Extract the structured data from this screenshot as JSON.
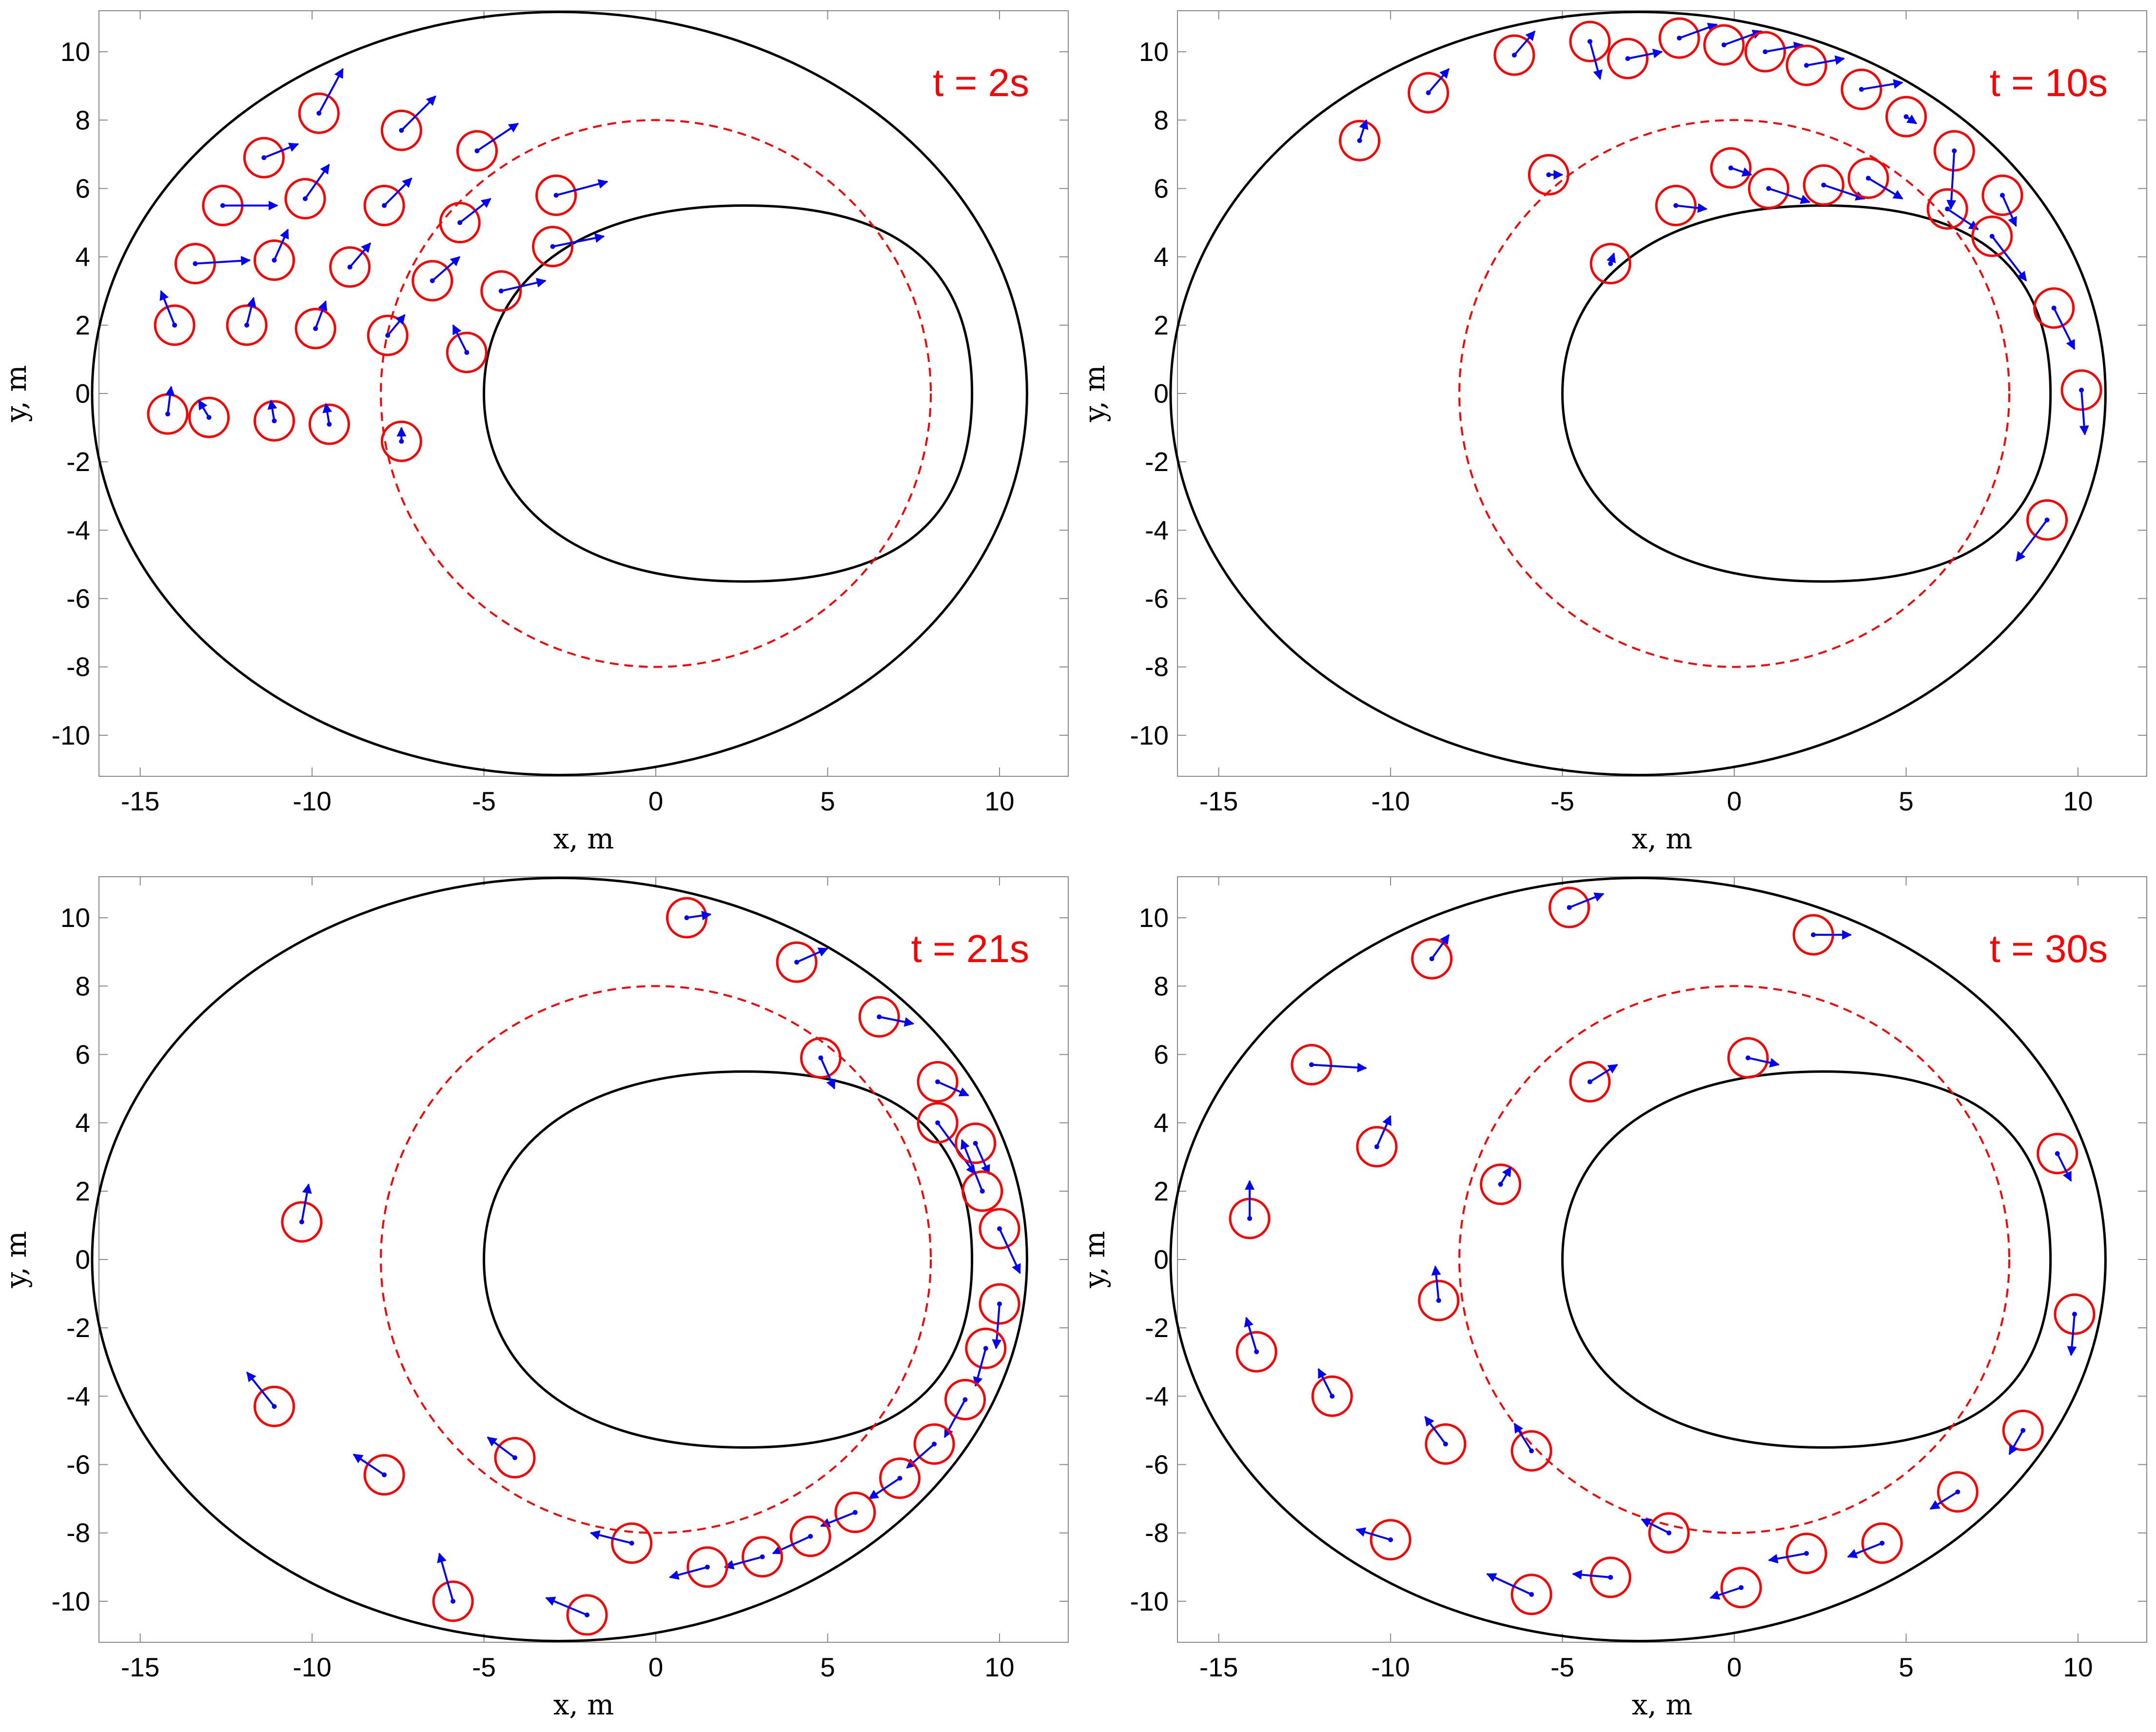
{
  "colors": {
    "agent": "#ff0000",
    "velocity": "#0000ff",
    "boundary": "#000000",
    "reference_path": "#ff0000",
    "frame": "#888888"
  },
  "chart_data": [
    {
      "type": "scatter",
      "title": "t = 2s",
      "xlabel": "x, m",
      "ylabel": "y, m",
      "xlim": [
        -16.2,
        12
      ],
      "ylim": [
        -11.2,
        11.2
      ],
      "xticks": [
        -15,
        -10,
        -5,
        0,
        5,
        10
      ],
      "yticks": [
        -10,
        -8,
        -6,
        -4,
        -2,
        0,
        2,
        4,
        6,
        8,
        10
      ],
      "grid": false,
      "boundaries": {
        "outer": {
          "center": [
            -2.8,
            0
          ],
          "rx": 13.6,
          "ry": 11.1
        },
        "inner": {
          "left": -5,
          "right": 9.2,
          "top": 5.5,
          "bottom": -5.5,
          "peak_x": 2.6
        },
        "reference_circle": {
          "center": [
            0,
            0
          ],
          "radius": 8
        }
      },
      "agents": [
        {
          "x": -9.8,
          "y": 8.2,
          "vx": 0.7,
          "vy": 1.3
        },
        {
          "x": -7.4,
          "y": 7.7,
          "vx": 1.0,
          "vy": 1.0
        },
        {
          "x": -5.2,
          "y": 7.1,
          "vx": 1.2,
          "vy": 0.8
        },
        {
          "x": -11.4,
          "y": 6.9,
          "vx": 1.0,
          "vy": 0.4
        },
        {
          "x": -12.6,
          "y": 5.5,
          "vx": 1.6,
          "vy": 0.0
        },
        {
          "x": -10.2,
          "y": 5.7,
          "vx": 0.7,
          "vy": 1.0
        },
        {
          "x": -7.9,
          "y": 5.5,
          "vx": 0.8,
          "vy": 0.8
        },
        {
          "x": -2.9,
          "y": 5.8,
          "vx": 1.5,
          "vy": 0.4
        },
        {
          "x": -5.7,
          "y": 5.0,
          "vx": 0.9,
          "vy": 0.7
        },
        {
          "x": -13.4,
          "y": 3.8,
          "vx": 1.6,
          "vy": 0.1
        },
        {
          "x": -11.1,
          "y": 3.9,
          "vx": 0.4,
          "vy": 0.9
        },
        {
          "x": -8.9,
          "y": 3.7,
          "vx": 0.6,
          "vy": 0.7
        },
        {
          "x": -6.5,
          "y": 3.3,
          "vx": 0.8,
          "vy": 0.7
        },
        {
          "x": -3.0,
          "y": 4.3,
          "vx": 1.5,
          "vy": 0.3
        },
        {
          "x": -4.5,
          "y": 3.0,
          "vx": 1.3,
          "vy": 0.3
        },
        {
          "x": -14.0,
          "y": 2.0,
          "vx": -0.4,
          "vy": 1.0
        },
        {
          "x": -11.9,
          "y": 2.0,
          "vx": 0.2,
          "vy": 0.8
        },
        {
          "x": -9.9,
          "y": 1.9,
          "vx": 0.3,
          "vy": 0.8
        },
        {
          "x": -7.8,
          "y": 1.7,
          "vx": 0.5,
          "vy": 0.6
        },
        {
          "x": -5.5,
          "y": 1.2,
          "vx": -0.4,
          "vy": 0.8
        },
        {
          "x": -14.2,
          "y": -0.6,
          "vx": 0.1,
          "vy": 0.8
        },
        {
          "x": -13.0,
          "y": -0.7,
          "vx": -0.3,
          "vy": 0.5
        },
        {
          "x": -11.1,
          "y": -0.8,
          "vx": -0.1,
          "vy": 0.6
        },
        {
          "x": -9.5,
          "y": -0.9,
          "vx": -0.1,
          "vy": 0.6
        },
        {
          "x": -7.4,
          "y": -1.4,
          "vx": 0.0,
          "vy": 0.4
        }
      ]
    },
    {
      "type": "scatter",
      "title": "t = 10s",
      "xlabel": "x, m",
      "ylabel": "y, m",
      "xlim": [
        -16.2,
        12
      ],
      "ylim": [
        -11.2,
        11.2
      ],
      "xticks": [
        -15,
        -10,
        -5,
        0,
        5,
        10
      ],
      "yticks": [
        -10,
        -8,
        -6,
        -4,
        -2,
        0,
        2,
        4,
        6,
        8,
        10
      ],
      "grid": false,
      "boundaries": {
        "outer": {
          "center": [
            -2.8,
            0
          ],
          "rx": 13.6,
          "ry": 11.1
        },
        "inner": {
          "left": -5,
          "right": 9.2,
          "top": 5.5,
          "bottom": -5.5,
          "peak_x": 2.6
        },
        "reference_circle": {
          "center": [
            0,
            0
          ],
          "radius": 8
        }
      },
      "agents": [
        {
          "x": -10.9,
          "y": 7.4,
          "vx": 0.2,
          "vy": 0.6
        },
        {
          "x": -8.9,
          "y": 8.8,
          "vx": 0.6,
          "vy": 0.7
        },
        {
          "x": -6.4,
          "y": 9.9,
          "vx": 0.6,
          "vy": 0.7
        },
        {
          "x": -4.2,
          "y": 10.3,
          "vx": 0.3,
          "vy": -1.1
        },
        {
          "x": -3.1,
          "y": 9.8,
          "vx": 1.0,
          "vy": 0.2
        },
        {
          "x": -1.6,
          "y": 10.4,
          "vx": 1.1,
          "vy": 0.4
        },
        {
          "x": -0.3,
          "y": 10.2,
          "vx": 1.1,
          "vy": 0.4
        },
        {
          "x": 0.9,
          "y": 10.0,
          "vx": 1.1,
          "vy": 0.2
        },
        {
          "x": 2.1,
          "y": 9.6,
          "vx": 1.1,
          "vy": 0.2
        },
        {
          "x": 3.7,
          "y": 8.9,
          "vx": 1.2,
          "vy": 0.2
        },
        {
          "x": 5.0,
          "y": 8.1,
          "vx": 0.3,
          "vy": -0.2
        },
        {
          "x": 6.4,
          "y": 7.1,
          "vx": -0.1,
          "vy": -1.7
        },
        {
          "x": 7.8,
          "y": 5.8,
          "vx": 0.4,
          "vy": -0.9
        },
        {
          "x": 6.2,
          "y": 5.4,
          "vx": 0.9,
          "vy": -0.6
        },
        {
          "x": 7.5,
          "y": 4.6,
          "vx": 1.0,
          "vy": -1.3
        },
        {
          "x": 9.3,
          "y": 2.5,
          "vx": 0.6,
          "vy": -1.2
        },
        {
          "x": 10.1,
          "y": 0.1,
          "vx": 0.1,
          "vy": -1.3
        },
        {
          "x": 9.1,
          "y": -3.7,
          "vx": -0.9,
          "vy": -1.2
        },
        {
          "x": -0.1,
          "y": 6.6,
          "vx": 0.6,
          "vy": -0.2
        },
        {
          "x": 1.0,
          "y": 6.0,
          "vx": 1.2,
          "vy": -0.4
        },
        {
          "x": 2.6,
          "y": 6.1,
          "vx": 1.2,
          "vy": -0.4
        },
        {
          "x": 3.9,
          "y": 6.3,
          "vx": 1.0,
          "vy": -0.6
        },
        {
          "x": -5.4,
          "y": 6.4,
          "vx": 0.4,
          "vy": 0.0
        },
        {
          "x": -1.7,
          "y": 5.5,
          "vx": 0.9,
          "vy": -0.1
        },
        {
          "x": -3.6,
          "y": 3.8,
          "vx": 0.1,
          "vy": 0.3
        }
      ]
    },
    {
      "type": "scatter",
      "title": "t = 21s",
      "xlabel": "x, m",
      "ylabel": "y, m",
      "xlim": [
        -16.2,
        12
      ],
      "ylim": [
        -11.2,
        11.2
      ],
      "xticks": [
        -15,
        -10,
        -5,
        0,
        5,
        10
      ],
      "yticks": [
        -10,
        -8,
        -6,
        -4,
        -2,
        0,
        2,
        4,
        6,
        8,
        10
      ],
      "grid": false,
      "boundaries": {
        "outer": {
          "center": [
            -2.8,
            0
          ],
          "rx": 13.6,
          "ry": 11.1
        },
        "inner": {
          "left": -5,
          "right": 9.2,
          "top": 5.5,
          "bottom": -5.5,
          "peak_x": 2.6
        },
        "reference_circle": {
          "center": [
            0,
            0
          ],
          "radius": 8
        }
      },
      "agents": [
        {
          "x": 0.9,
          "y": 10.0,
          "vx": 0.7,
          "vy": 0.1
        },
        {
          "x": 4.1,
          "y": 8.7,
          "vx": 0.9,
          "vy": 0.4
        },
        {
          "x": 6.5,
          "y": 7.1,
          "vx": 1.0,
          "vy": -0.2
        },
        {
          "x": 4.8,
          "y": 5.9,
          "vx": 0.4,
          "vy": -0.9
        },
        {
          "x": 8.2,
          "y": 5.2,
          "vx": 0.9,
          "vy": -0.4
        },
        {
          "x": 8.2,
          "y": 4.0,
          "vx": 1.1,
          "vy": -1.5
        },
        {
          "x": 9.3,
          "y": 3.4,
          "vx": 0.4,
          "vy": -0.9
        },
        {
          "x": 9.5,
          "y": 2.0,
          "vx": -0.6,
          "vy": 1.5
        },
        {
          "x": 10.0,
          "y": 0.9,
          "vx": 0.6,
          "vy": -1.3
        },
        {
          "x": 10.0,
          "y": -1.3,
          "vx": -0.1,
          "vy": -1.3
        },
        {
          "x": 9.6,
          "y": -2.6,
          "vx": -0.3,
          "vy": -1.1
        },
        {
          "x": 9.0,
          "y": -4.1,
          "vx": -0.6,
          "vy": -1.1
        },
        {
          "x": 8.1,
          "y": -5.4,
          "vx": -0.8,
          "vy": -0.7
        },
        {
          "x": 7.1,
          "y": -6.4,
          "vx": -0.9,
          "vy": -0.6
        },
        {
          "x": 5.8,
          "y": -7.4,
          "vx": -1.0,
          "vy": -0.4
        },
        {
          "x": 4.5,
          "y": -8.1,
          "vx": -1.1,
          "vy": -0.5
        },
        {
          "x": 3.1,
          "y": -8.7,
          "vx": -1.1,
          "vy": -0.3
        },
        {
          "x": 1.5,
          "y": -9.0,
          "vx": -1.1,
          "vy": -0.3
        },
        {
          "x": -0.7,
          "y": -8.3,
          "vx": -1.2,
          "vy": 0.3
        },
        {
          "x": -10.3,
          "y": 1.1,
          "vx": 0.2,
          "vy": 1.1
        },
        {
          "x": -11.1,
          "y": -4.3,
          "vx": -0.8,
          "vy": 1.0
        },
        {
          "x": -7.9,
          "y": -6.3,
          "vx": -0.9,
          "vy": 0.6
        },
        {
          "x": -4.1,
          "y": -5.8,
          "vx": -0.8,
          "vy": 0.6
        },
        {
          "x": -5.9,
          "y": -10.0,
          "vx": -0.4,
          "vy": 1.4
        },
        {
          "x": -2.0,
          "y": -10.4,
          "vx": -1.2,
          "vy": 0.5
        }
      ]
    },
    {
      "type": "scatter",
      "title": "t = 30s",
      "xlabel": "x, m",
      "ylabel": "y, m",
      "xlim": [
        -16.2,
        12
      ],
      "ylim": [
        -11.2,
        11.2
      ],
      "xticks": [
        -15,
        -10,
        -5,
        0,
        5,
        10
      ],
      "yticks": [
        -10,
        -8,
        -6,
        -4,
        -2,
        0,
        2,
        4,
        6,
        8,
        10
      ],
      "grid": false,
      "boundaries": {
        "outer": {
          "center": [
            -2.8,
            0
          ],
          "rx": 13.6,
          "ry": 11.1
        },
        "inner": {
          "left": -5,
          "right": 9.2,
          "top": 5.5,
          "bottom": -5.5,
          "peak_x": 2.6
        },
        "reference_circle": {
          "center": [
            0,
            0
          ],
          "radius": 8
        }
      },
      "agents": [
        {
          "x": -4.8,
          "y": 10.3,
          "vx": 1.0,
          "vy": 0.4
        },
        {
          "x": -8.8,
          "y": 8.8,
          "vx": 0.5,
          "vy": 0.7
        },
        {
          "x": 2.3,
          "y": 9.5,
          "vx": 1.1,
          "vy": 0.0
        },
        {
          "x": -12.3,
          "y": 5.7,
          "vx": 1.6,
          "vy": -0.1
        },
        {
          "x": 0.4,
          "y": 5.9,
          "vx": 0.9,
          "vy": -0.2
        },
        {
          "x": -4.2,
          "y": 5.2,
          "vx": 0.8,
          "vy": 0.5
        },
        {
          "x": -10.4,
          "y": 3.3,
          "vx": 0.4,
          "vy": 0.9
        },
        {
          "x": -6.8,
          "y": 2.2,
          "vx": 0.3,
          "vy": 0.5
        },
        {
          "x": -14.1,
          "y": 1.2,
          "vx": 0.0,
          "vy": 1.1
        },
        {
          "x": 9.4,
          "y": 3.1,
          "vx": 0.4,
          "vy": -0.8
        },
        {
          "x": 9.9,
          "y": -1.6,
          "vx": -0.1,
          "vy": -1.2
        },
        {
          "x": -8.6,
          "y": -1.2,
          "vx": -0.1,
          "vy": 1.0
        },
        {
          "x": -13.9,
          "y": -2.7,
          "vx": -0.3,
          "vy": 1.0
        },
        {
          "x": -11.7,
          "y": -4.0,
          "vx": -0.4,
          "vy": 0.8
        },
        {
          "x": -8.4,
          "y": -5.4,
          "vx": -0.6,
          "vy": 0.8
        },
        {
          "x": -5.9,
          "y": -5.6,
          "vx": -0.5,
          "vy": 0.8
        },
        {
          "x": 8.4,
          "y": -5.0,
          "vx": -0.4,
          "vy": -0.7
        },
        {
          "x": 6.5,
          "y": -6.8,
          "vx": -0.8,
          "vy": -0.5
        },
        {
          "x": -1.9,
          "y": -8.0,
          "vx": -0.8,
          "vy": 0.4
        },
        {
          "x": 4.3,
          "y": -8.3,
          "vx": -1.0,
          "vy": -0.4
        },
        {
          "x": 2.1,
          "y": -8.6,
          "vx": -1.1,
          "vy": -0.2
        },
        {
          "x": -10.0,
          "y": -8.2,
          "vx": -1.0,
          "vy": 0.3
        },
        {
          "x": -3.6,
          "y": -9.3,
          "vx": -1.1,
          "vy": 0.1
        },
        {
          "x": 0.2,
          "y": -9.6,
          "vx": -0.9,
          "vy": -0.3
        },
        {
          "x": -5.9,
          "y": -9.8,
          "vx": -1.3,
          "vy": 0.6
        }
      ]
    }
  ]
}
